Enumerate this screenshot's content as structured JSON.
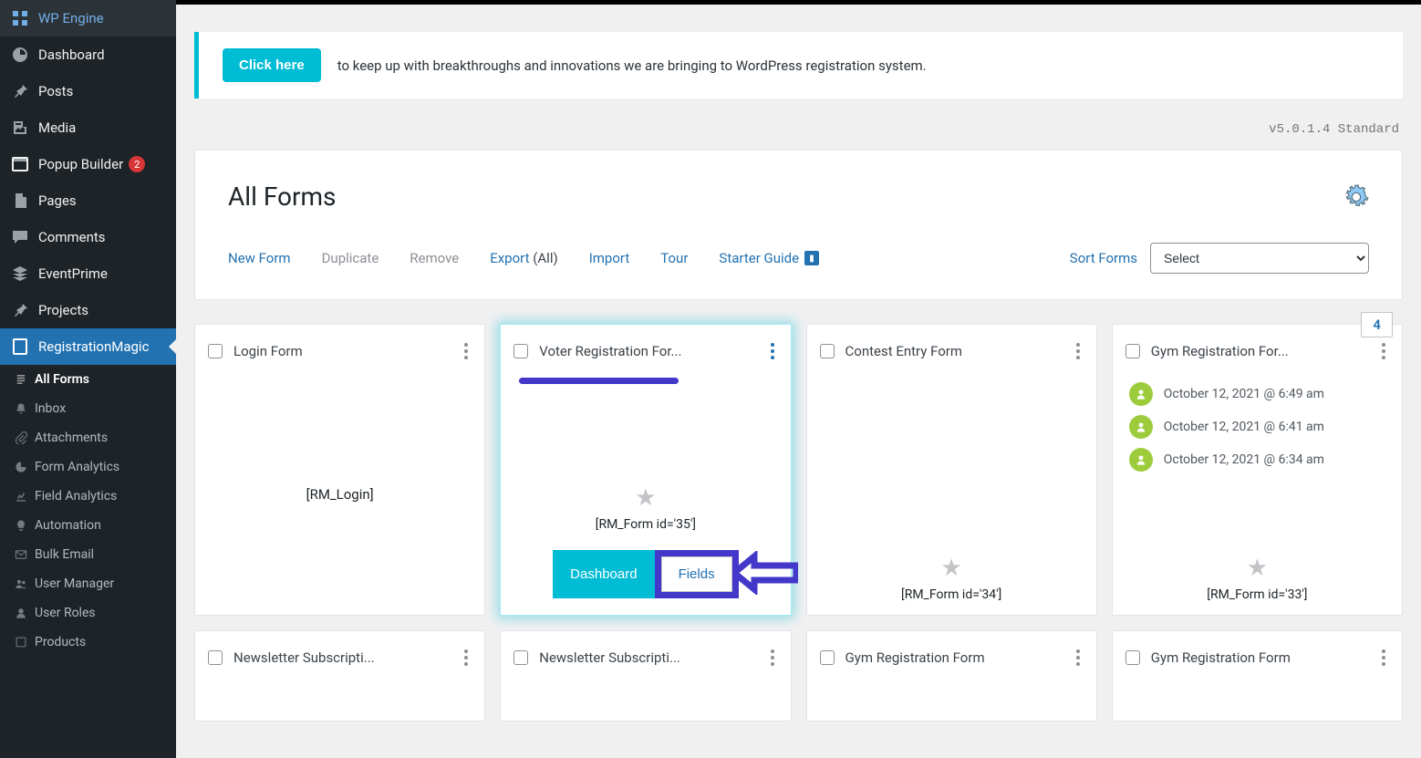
{
  "colors": {
    "accent": "#00bcd4",
    "link": "#2271b1",
    "annot": "#4338ca",
    "avatar": "#9ccc3c",
    "badge_red": "#d63638",
    "sidebar_bg": "#1d2327"
  },
  "sidebar": {
    "items": [
      {
        "label": "WP Engine",
        "icon": "grid"
      },
      {
        "label": "Dashboard",
        "icon": "gauge"
      },
      {
        "label": "Posts",
        "icon": "pin"
      },
      {
        "label": "Media",
        "icon": "media"
      },
      {
        "label": "Popup Builder",
        "icon": "popup",
        "badge": "2"
      },
      {
        "label": "Pages",
        "icon": "pages"
      },
      {
        "label": "Comments",
        "icon": "comment"
      },
      {
        "label": "EventPrime",
        "icon": "stack"
      },
      {
        "label": "Projects",
        "icon": "pin"
      },
      {
        "label": "RegistrationMagic",
        "icon": "form",
        "active": true
      }
    ],
    "sub": [
      {
        "label": "All Forms",
        "icon": "forms",
        "sel": true
      },
      {
        "label": "Inbox",
        "icon": "bell"
      },
      {
        "label": "Attachments",
        "icon": "clip"
      },
      {
        "label": "Form Analytics",
        "icon": "pie"
      },
      {
        "label": "Field Analytics",
        "icon": "chart"
      },
      {
        "label": "Automation",
        "icon": "bulb"
      },
      {
        "label": "Bulk Email",
        "icon": "mail"
      },
      {
        "label": "User Manager",
        "icon": "users"
      },
      {
        "label": "User Roles",
        "icon": "user"
      },
      {
        "label": "Products",
        "icon": "box"
      }
    ]
  },
  "notice": {
    "button": "Click here",
    "text": "to keep up with breakthroughs and innovations we are bringing to WordPress registration system."
  },
  "version": "v5.0.1.4 Standard",
  "panel": {
    "title": "All Forms",
    "toolbar": {
      "new": "New Form",
      "dup": "Duplicate",
      "rem": "Remove",
      "exp": "Export",
      "exp_ext": "(All)",
      "imp": "Import",
      "tour": "Tour",
      "starter": "Starter Guide",
      "sort_label": "Sort Forms",
      "sort_placeholder": "Select"
    }
  },
  "cards": [
    {
      "title": "Login Form",
      "center": "[RM_Login]"
    },
    {
      "title": "Voter Registration For...",
      "shortcode": "[RM_Form id='35']",
      "selected": true,
      "dash": "Dashboard",
      "fields": "Fields"
    },
    {
      "title": "Contest Entry Form",
      "shortcode": "[RM_Form id='34']"
    },
    {
      "title": "Gym Registration For...",
      "shortcode": "[RM_Form id='33']",
      "count": "4",
      "entries": [
        "October 12, 2021 @ 6:49 am",
        "October 12, 2021 @ 6:41 am",
        "October 12, 2021 @ 6:34 am"
      ]
    },
    {
      "title": "Newsletter Subscripti..."
    },
    {
      "title": "Newsletter Subscripti..."
    },
    {
      "title": "Gym Registration Form"
    },
    {
      "title": "Gym Registration Form"
    }
  ]
}
